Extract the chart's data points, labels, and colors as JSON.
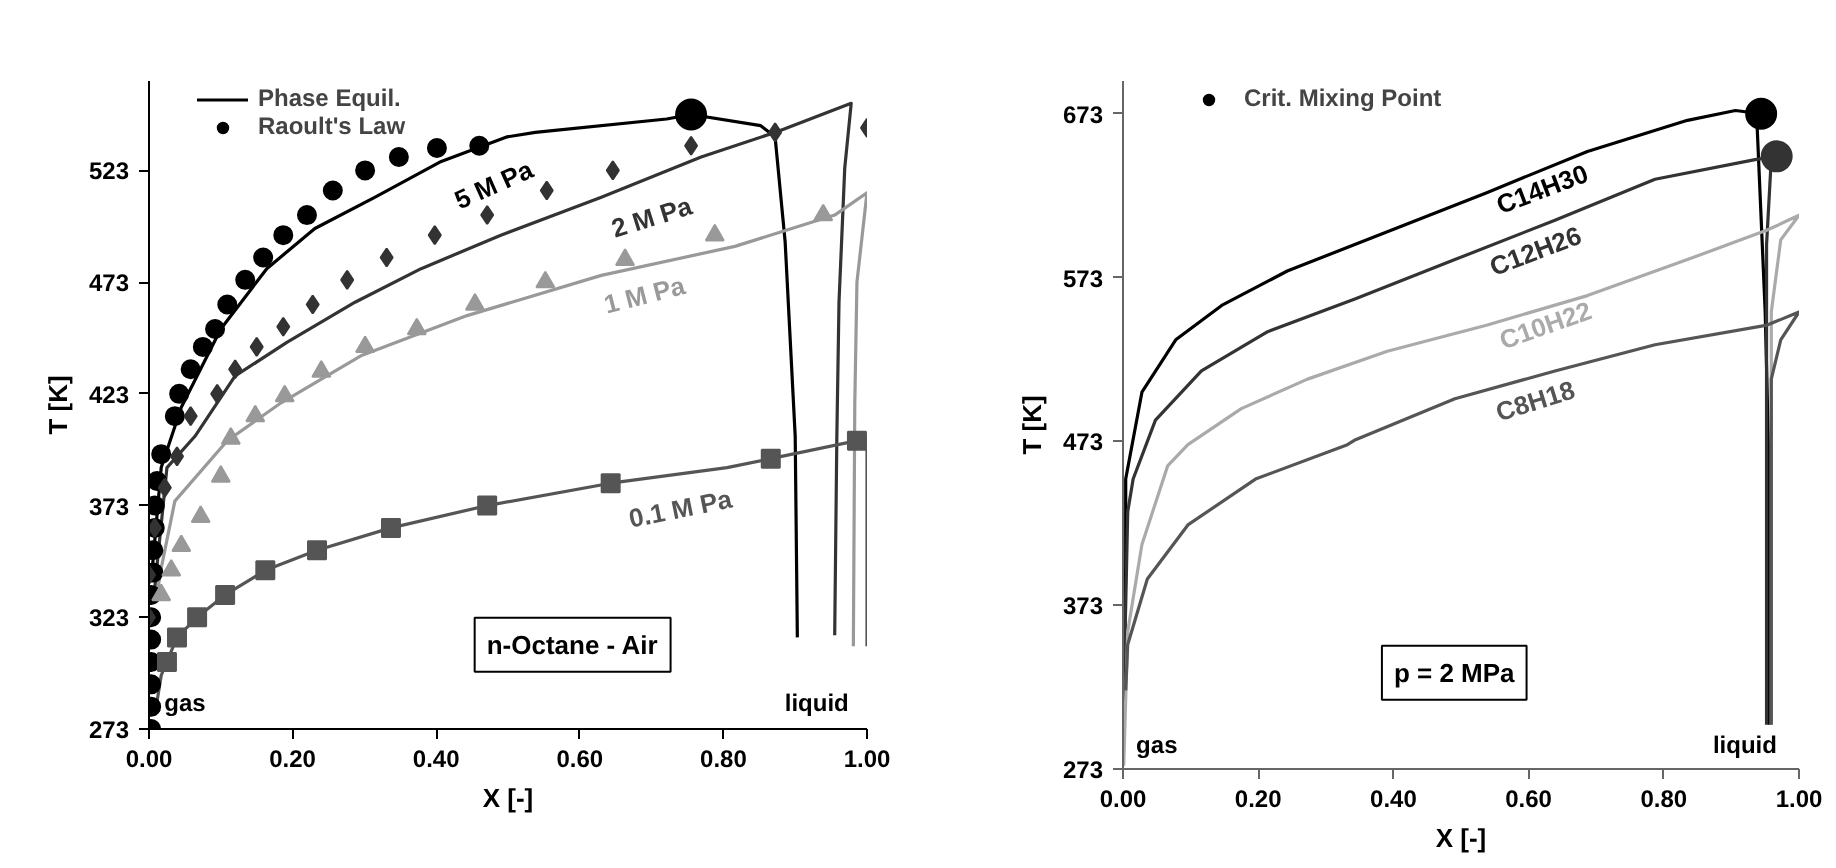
{
  "chart_data": [
    {
      "type": "line",
      "xlabel": "X [-]",
      "ylabel": "T [K]",
      "legend": "top left",
      "xlim": [
        0,
        1
      ],
      "ylim": [
        273,
        563
      ],
      "xticks": [
        {
          "value": 0,
          "label": "0.00"
        },
        {
          "value": 0.2,
          "label": "0.20"
        },
        {
          "value": 0.4,
          "label": "0.40"
        },
        {
          "value": 0.6,
          "label": "0.60"
        },
        {
          "value": 0.8,
          "label": "0.80"
        },
        {
          "value": 1,
          "label": "1.00"
        }
      ],
      "yticks": [
        273,
        323,
        373,
        423,
        473,
        523
      ],
      "annotations": [
        "5 M Pa",
        "2 M Pa",
        "1 M Pa",
        "0.1 M Pa",
        "n-Octane - Air",
        "gas",
        "liquid"
      ],
      "series": [
        {
          "name": "Phase Equil.",
          "color": "#000000",
          "x": [
            0.003,
            0.017,
            0.045,
            0.1,
            0.164,
            0.231,
            0.315,
            0.407,
            0.499,
            0.538,
            0.721,
            0.755,
            0.852,
            0.872,
            0.886,
            0.9,
            0.903
          ],
          "values": [
            339,
            390,
            417,
            452,
            479,
            497,
            511,
            527,
            538,
            540,
            546,
            548,
            543,
            538,
            491,
            404,
            314
          ]
        },
        {
          "color": "#333333",
          "x": [
            0.008,
            0.025,
            0.064,
            0.12,
            0.192,
            0.287,
            0.379,
            0.49,
            0.63,
            0.769,
            0.872,
            0.978,
            0.969,
            0.961,
            0.958,
            0.955
          ],
          "values": [
            336,
            390,
            404,
            431,
            446,
            464,
            479,
            494,
            511,
            529,
            540,
            553,
            524,
            464,
            404,
            315
          ]
        },
        {
          "color": "#999999",
          "x": [
            0.011,
            0.017,
            0.036,
            0.109,
            0.184,
            0.295,
            0.443,
            0.63,
            0.816,
            0.955,
            1.0,
            0.986,
            0.983,
            0.981
          ],
          "values": [
            333,
            345,
            375,
            402,
            419,
            440,
            458,
            476,
            489,
            503,
            513,
            473,
            419,
            310
          ]
        },
        {
          "color": "#555555",
          "x": [
            0.008,
            0.017,
            0.039,
            0.067,
            0.106,
            0.162,
            0.234,
            0.337,
            0.471,
            0.643,
            0.805,
            0.866,
            1.0,
            1.0
          ],
          "values": [
            279,
            297,
            314,
            323,
            333,
            344,
            353,
            363,
            373,
            383,
            390,
            394,
            403,
            310
          ]
        },
        {
          "name": "Raoult's Law",
          "type": "scatter",
          "marker": "circle",
          "color": "#000000",
          "x": [
            0.003,
            0.003,
            0.003,
            0.003,
            0.003,
            0.003,
            0.003,
            0.006,
            0.006,
            0.008,
            0.008,
            0.011,
            0.017,
            0.036,
            0.042,
            0.058,
            0.075,
            0.092,
            0.109,
            0.134,
            0.159,
            0.187,
            0.22,
            0.256,
            0.301,
            0.348,
            0.401,
            0.46
          ],
          "values": [
            273,
            283,
            293,
            303,
            313,
            323,
            333,
            343,
            353,
            363,
            373,
            384,
            396,
            413,
            423,
            434,
            444,
            452,
            463,
            474,
            484,
            494,
            503,
            514,
            523,
            529,
            533,
            534
          ]
        },
        {
          "type": "scatter",
          "marker": "diamond",
          "color": "#333333",
          "x": [
            0.0,
            0.0,
            0.008,
            0.022,
            0.039,
            0.058,
            0.095,
            0.12,
            0.15,
            0.187,
            0.228,
            0.276,
            0.331,
            0.398,
            0.471,
            0.554,
            0.646,
            0.755,
            0.872,
            1.0
          ],
          "values": [
            323,
            342,
            363,
            381,
            395,
            413,
            423,
            434,
            444,
            453,
            463,
            474,
            484,
            494,
            503,
            514,
            523,
            534,
            540,
            542
          ]
        },
        {
          "type": "scatter",
          "marker": "triangle",
          "color": "#999999",
          "x": [
            0.017,
            0.031,
            0.045,
            0.072,
            0.1,
            0.114,
            0.148,
            0.189,
            0.24,
            0.301,
            0.373,
            0.454,
            0.552,
            0.663,
            0.788,
            0.939
          ],
          "values": [
            333,
            344,
            355,
            368,
            386,
            403,
            413,
            422,
            433,
            444,
            452,
            463,
            473,
            483,
            494,
            503
          ]
        },
        {
          "type": "scatter",
          "marker": "square",
          "color": "#555555",
          "x": [
            0.025,
            0.039,
            0.067,
            0.106,
            0.162,
            0.234,
            0.337,
            0.471,
            0.643,
            0.866,
            0.986
          ],
          "values": [
            303,
            314,
            323,
            333,
            344,
            353,
            363,
            373,
            383,
            394,
            402
          ]
        },
        {
          "type": "scatter",
          "marker": "circle",
          "color": "#000000",
          "x": [
            0.755
          ],
          "values": [
            548
          ]
        }
      ]
    },
    {
      "type": "line",
      "xlabel": "X [-]",
      "ylabel": "T [K]",
      "legend": "top left",
      "xlim": [
        0,
        1
      ],
      "ylim": [
        273,
        693
      ],
      "xticks": [
        {
          "value": 0,
          "label": "0.00"
        },
        {
          "value": 0.2,
          "label": "0.20"
        },
        {
          "value": 0.4,
          "label": "0.40"
        },
        {
          "value": 0.6,
          "label": "0.60"
        },
        {
          "value": 0.8,
          "label": "0.80"
        },
        {
          "value": 1,
          "label": "1.00"
        }
      ],
      "yticks": [
        273,
        373,
        473,
        573,
        673
      ],
      "annotations": [
        "C14H30",
        "C12H26",
        "C10H22",
        "C8H18",
        "p = 2 MPa",
        "gas",
        "liquid"
      ],
      "series": [
        {
          "color": "#000000",
          "x": [
            0.001,
            0.004,
            0.004,
            0.028,
            0.078,
            0.146,
            0.243,
            0.391,
            0.539,
            0.687,
            0.835,
            0.906,
            0.944,
            0.938,
            0.95,
            0.956,
            0.956
          ],
          "values": [
            300,
            397,
            450,
            503,
            535,
            556,
            577,
            601,
            625,
            650,
            669,
            675,
            673,
            666,
            552,
            450,
            300
          ]
        },
        {
          "color": "#333333",
          "x": [
            0.001,
            0.004,
            0.007,
            0.015,
            0.048,
            0.116,
            0.214,
            0.344,
            0.491,
            0.639,
            0.787,
            0.935,
            0.967,
            0.958,
            0.952,
            0.952,
            0.952
          ],
          "values": [
            324,
            373,
            430,
            450,
            486,
            516,
            540,
            560,
            584,
            608,
            633,
            645,
            647,
            638,
            593,
            450,
            300
          ]
        },
        {
          "color": "#aaaaaa",
          "x": [
            0.001,
            0.007,
            0.028,
            0.066,
            0.096,
            0.175,
            0.273,
            0.391,
            0.539,
            0.687,
            0.835,
            0.953,
            1.0,
            0.973,
            0.959,
            0.959
          ],
          "values": [
            275,
            357,
            410,
            458,
            471,
            493,
            511,
            528,
            544,
            562,
            584,
            602,
            611,
            596,
            552,
            300
          ]
        },
        {
          "color": "#555555",
          "x": [
            0.004,
            0.007,
            0.036,
            0.096,
            0.196,
            0.332,
            0.344,
            0.491,
            0.639,
            0.787,
            0.953,
            1.0,
            0.973,
            0.959,
            0.959
          ],
          "values": [
            321,
            349,
            389,
            422,
            450,
            471,
            474,
            499,
            516,
            532,
            544,
            552,
            535,
            511,
            300
          ]
        },
        {
          "name": "Crit. Mixing Point",
          "type": "scatter",
          "marker": "circle",
          "colors": [
            "#000000",
            "#333333"
          ],
          "x": [
            0.944,
            0.967
          ],
          "values": [
            673,
            647
          ]
        }
      ]
    }
  ]
}
